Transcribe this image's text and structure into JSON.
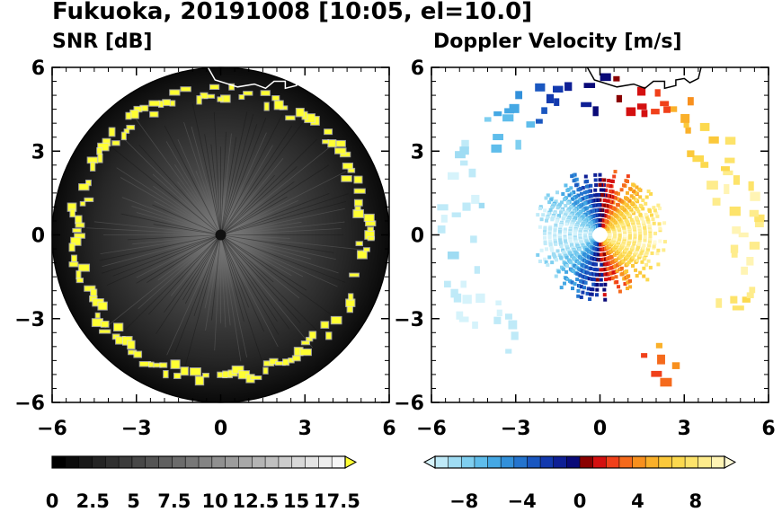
{
  "title": "Fukuoka, 20191008 [10:05, el=10.0]",
  "colors": {
    "snr_feature": "#ffff22",
    "range_ring": "#000000",
    "coastline": "#000000",
    "background": "#ffffff"
  },
  "chart_data": [
    {
      "type": "heatmap",
      "title": "SNR [dB]",
      "projection": "radar PPI (x-y distance)",
      "xlim": [
        -6,
        6
      ],
      "ylim": [
        -6,
        6
      ],
      "xticks": [
        "−6",
        "−3",
        "0",
        "3",
        "6"
      ],
      "yticks": [
        "6",
        "3",
        "0",
        "−3",
        "−6"
      ],
      "max_range": 6,
      "colorbar": {
        "min": 0,
        "max": 18,
        "extend": "max",
        "tick_labels": [
          "0",
          "2.5",
          "5",
          "7.5",
          "10",
          "12.5",
          "15",
          "17.5"
        ],
        "colors": [
          "#000000",
          "#0c0c0c",
          "#181818",
          "#242424",
          "#303030",
          "#3c3c3c",
          "#484848",
          "#545454",
          "#606060",
          "#6c6c6c",
          "#787878",
          "#848484",
          "#909090",
          "#9c9c9c",
          "#a8a8a8",
          "#b4b4b4",
          "#c0c0c0",
          "#cccccc",
          "#d8d8d8",
          "#e4e4e4",
          "#eeeeee",
          "#f6f6f6",
          "#ffff33"
        ]
      },
      "features": [
        {
          "name": "high SNR ring",
          "range_min": 4.6,
          "range_max": 5.6,
          "snr": 18
        }
      ]
    },
    {
      "type": "heatmap",
      "title": "Doppler Velocity [m/s]",
      "projection": "radar PPI (x-y distance)",
      "xlim": [
        -6,
        6
      ],
      "ylim": [
        -6,
        6
      ],
      "xticks": [
        "−6",
        "−3",
        "0",
        "3",
        "6"
      ],
      "yticks": [
        "6",
        "3",
        "0",
        "−3",
        "−6"
      ],
      "max_range": 6,
      "colorbar": {
        "min": -10,
        "max": 10,
        "extend": "both",
        "tick_labels": [
          "−8",
          "−4",
          "0",
          "4",
          "8"
        ],
        "colors": [
          "#d6f3fb",
          "#bfeaf8",
          "#9fdcf3",
          "#7fcff0",
          "#5fbdeb",
          "#45a8e4",
          "#3290da",
          "#2474ce",
          "#1a57c0",
          "#1239ae",
          "#0e1f95",
          "#0a0a78",
          "#8a0000",
          "#d41010",
          "#f0401a",
          "#f56a1c",
          "#f8901e",
          "#fab02a",
          "#fbc83a",
          "#fcd94e",
          "#fde36a",
          "#feec8c",
          "#fff4b4",
          "#fffad6"
        ]
      },
      "features": [
        {
          "name": "inner echo",
          "range_max": 2.5
        },
        {
          "name": "outer ring",
          "range_min": 4.3,
          "range_max": 5.8
        }
      ]
    }
  ]
}
